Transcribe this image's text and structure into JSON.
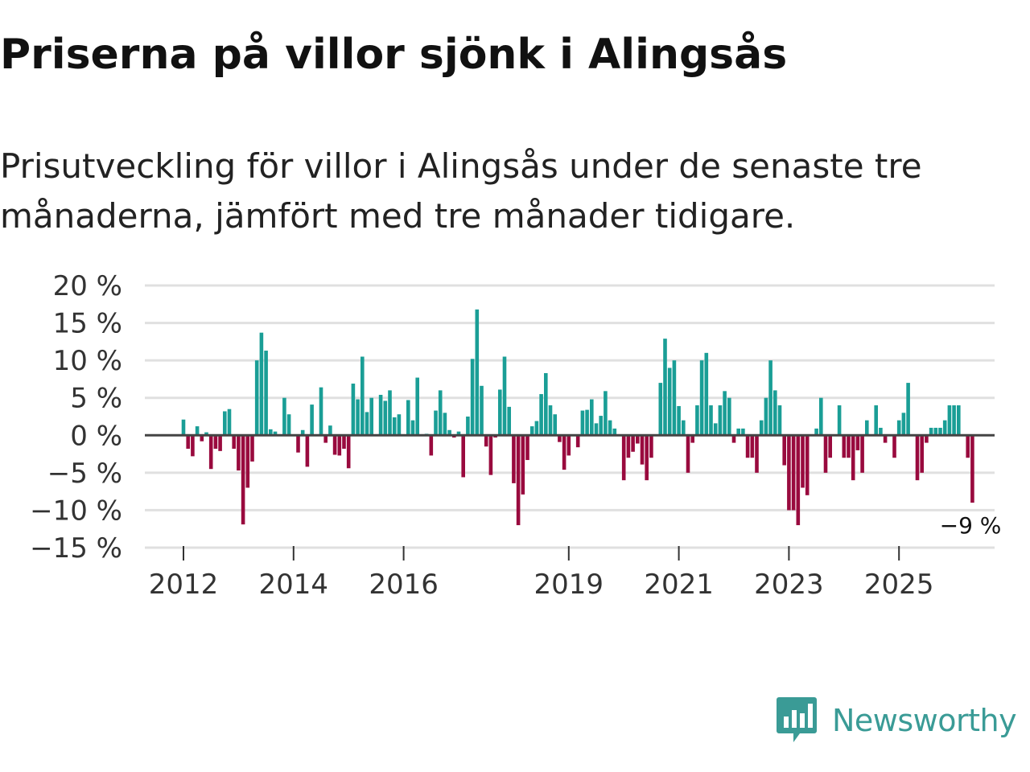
{
  "header": {
    "title": "Priserna på villor sjönk i Alingsås",
    "subtitle": "Prisutveckling för villor i Alingsås under de senaste tre månaderna, jämfört med tre månader tidigare."
  },
  "colors": {
    "positive": "#1a9e96",
    "negative": "#990a3e",
    "zero_line": "#444444",
    "grid": "#e0e0e0",
    "brand": "#3a9b96"
  },
  "brand": {
    "name": "Newsworthy",
    "icon": "newsworthy-logo-icon"
  },
  "chart_data": {
    "type": "bar",
    "title": "Priserna på villor sjönk i Alingsås",
    "subtitle": "Prisutveckling för villor i Alingsås under de senaste tre månaderna, jämfört med tre månader tidigare.",
    "xlabel": "",
    "ylabel": "",
    "x_start": "2012-01",
    "frequency": "monthly",
    "unit": "%",
    "ylim": [
      -15,
      20
    ],
    "yticks": [
      20,
      15,
      10,
      5,
      0,
      -5,
      -10,
      -15
    ],
    "ytick_labels": [
      "20 %",
      "15 %",
      "10 %",
      "5 %",
      "0 %",
      "−5 %",
      "−10 %",
      "−15 %"
    ],
    "xtick_labels": [
      "2012",
      "2014",
      "2016",
      "2019",
      "2021",
      "2023",
      "2025"
    ],
    "xtick_positions": [
      2012,
      2014,
      2016,
      2019,
      2021,
      2023,
      2025
    ],
    "grid": true,
    "values": [
      2.1,
      -1.8,
      -2.8,
      1.2,
      -0.8,
      0.4,
      -4.5,
      -1.8,
      -2.1,
      3.2,
      3.5,
      -1.8,
      -4.7,
      -11.9,
      -7.0,
      -3.5,
      10.0,
      13.7,
      11.3,
      0.8,
      0.5,
      0.0,
      5.0,
      2.8,
      0.0,
      -2.3,
      0.7,
      -4.2,
      4.1,
      0.0,
      6.4,
      -1.0,
      1.3,
      -2.6,
      -2.7,
      -1.8,
      -4.4,
      6.9,
      4.8,
      10.5,
      3.1,
      5.0,
      0.1,
      5.4,
      4.6,
      6.0,
      2.4,
      2.8,
      0.1,
      4.7,
      2.0,
      7.7,
      0.1,
      0.2,
      -2.7,
      3.3,
      6.0,
      3.0,
      0.7,
      -0.3,
      0.5,
      -5.6,
      2.5,
      10.2,
      16.8,
      6.6,
      -1.5,
      -5.3,
      -0.3,
      6.1,
      10.5,
      3.8,
      -6.4,
      -12.0,
      -7.9,
      -3.3,
      1.2,
      1.9,
      5.5,
      8.3,
      4.0,
      2.8,
      -0.9,
      -4.6,
      -2.7,
      0.0,
      -1.6,
      3.3,
      3.4,
      4.8,
      1.6,
      2.6,
      5.9,
      2.0,
      0.9,
      0.0,
      -6.0,
      -3.0,
      -2.2,
      -1.1,
      -3.9,
      -6.0,
      -3.0,
      0.0,
      7.0,
      12.9,
      9.0,
      10.0,
      3.9,
      2.0,
      -5.0,
      -1.0,
      4.0,
      10.0,
      11.0,
      4.0,
      1.6,
      4.0,
      5.9,
      5.0,
      -1.0,
      0.9,
      0.9,
      -3.0,
      -3.0,
      -5.0,
      2.0,
      5.0,
      10.0,
      6.0,
      4.0,
      -4.0,
      -10.0,
      -10.0,
      -12.0,
      -7.0,
      -8.0,
      0.0,
      0.9,
      5.0,
      -5.0,
      -3.0,
      0.0,
      4.0,
      -3.0,
      -3.0,
      -6.0,
      -2.0,
      -5.0,
      2.0,
      0.0,
      4.0,
      1.0,
      -1.0,
      0.0,
      -3.0,
      2.0,
      3.0,
      7.0,
      0.0,
      -6.0,
      -5.0,
      -1.0,
      1.0,
      1.0,
      1.0,
      2.0,
      4.0,
      4.0,
      4.0,
      0.0,
      -3.0,
      -9.0
    ],
    "annotations": [
      {
        "text": "−9 %",
        "index": 172,
        "value": -9
      }
    ]
  }
}
